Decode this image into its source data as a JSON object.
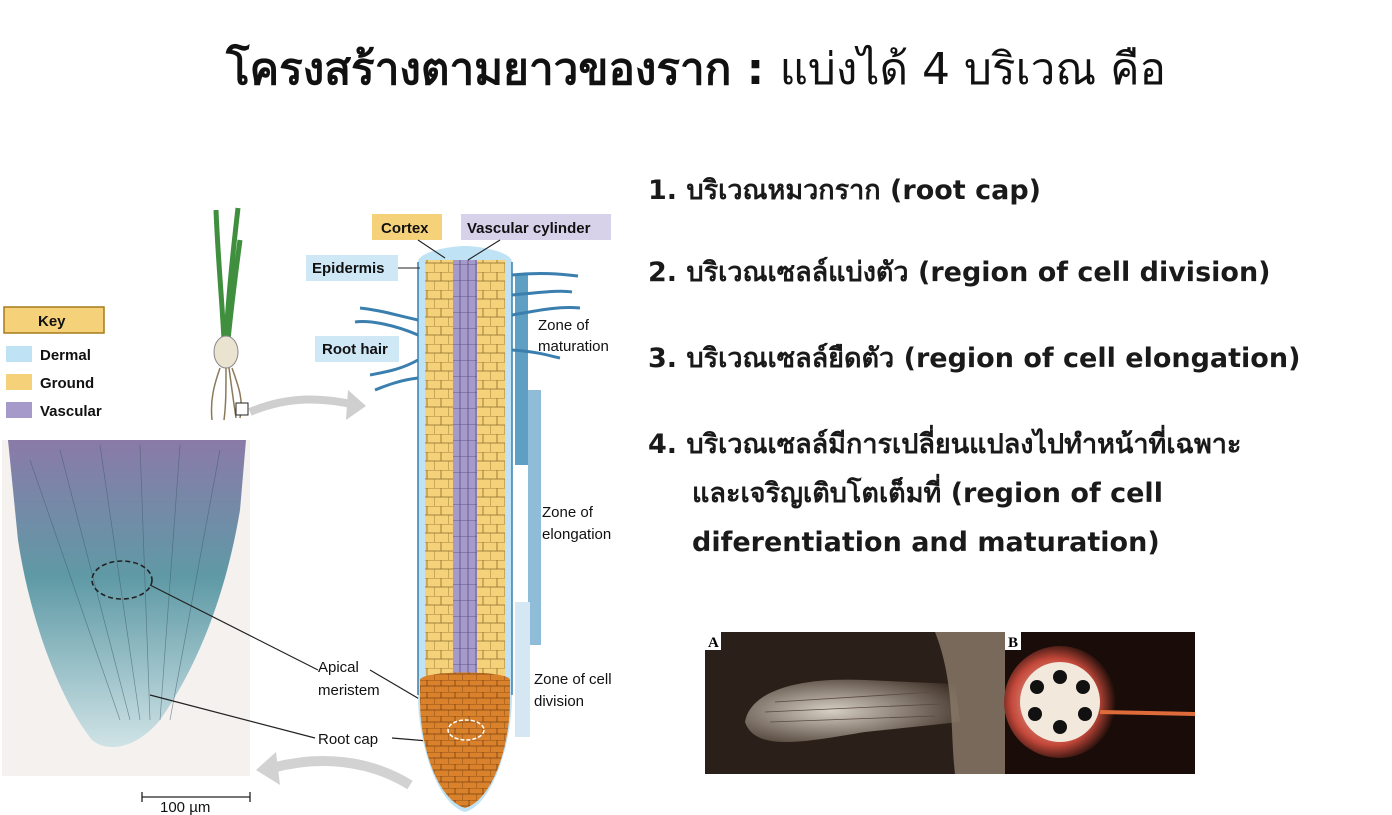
{
  "title": {
    "main": "โครงสร้างตามยาวของราก",
    "sep": " : ",
    "rest": "แบ่งได้ 4 บริเวณ คือ"
  },
  "items": [
    "1. บริเวณหมวกราก (root cap)",
    "2. บริเวณเซลล์แบ่งตัว (region of cell division)",
    "3. บริเวณเซลล์ยืดตัว (region of cell elongation)",
    "4. บริเวณเซลล์มีการเปลี่ยนแปลงไปทำหน้าที่เฉพาะ"
  ],
  "item4_cont": [
    "และเจริญเติบโตเต็มที่ (region of cell",
    "diferentiation and maturation)"
  ],
  "figure": {
    "key_title": "Key",
    "key_items": [
      "Dermal",
      "Ground",
      "Vascular"
    ],
    "cortex": "Cortex",
    "vascular_cylinder": "Vascular cylinder",
    "epidermis": "Epidermis",
    "root_hair": "Root hair",
    "zone_maturation": [
      "Zone of",
      "maturation"
    ],
    "zone_elongation": [
      "Zone of",
      "elongation"
    ],
    "zone_division": [
      "Zone of cell",
      "division"
    ],
    "apical_meristem": [
      "Apical",
      "meristem"
    ],
    "root_cap": "Root cap",
    "scale": "100 µm"
  },
  "photo_labels": [
    "A",
    "B"
  ],
  "colors": {
    "dermal": "#bfe3f5",
    "ground": "#f5d27a",
    "vascular": "#a59ac9",
    "rootcap": "#d9822b"
  }
}
